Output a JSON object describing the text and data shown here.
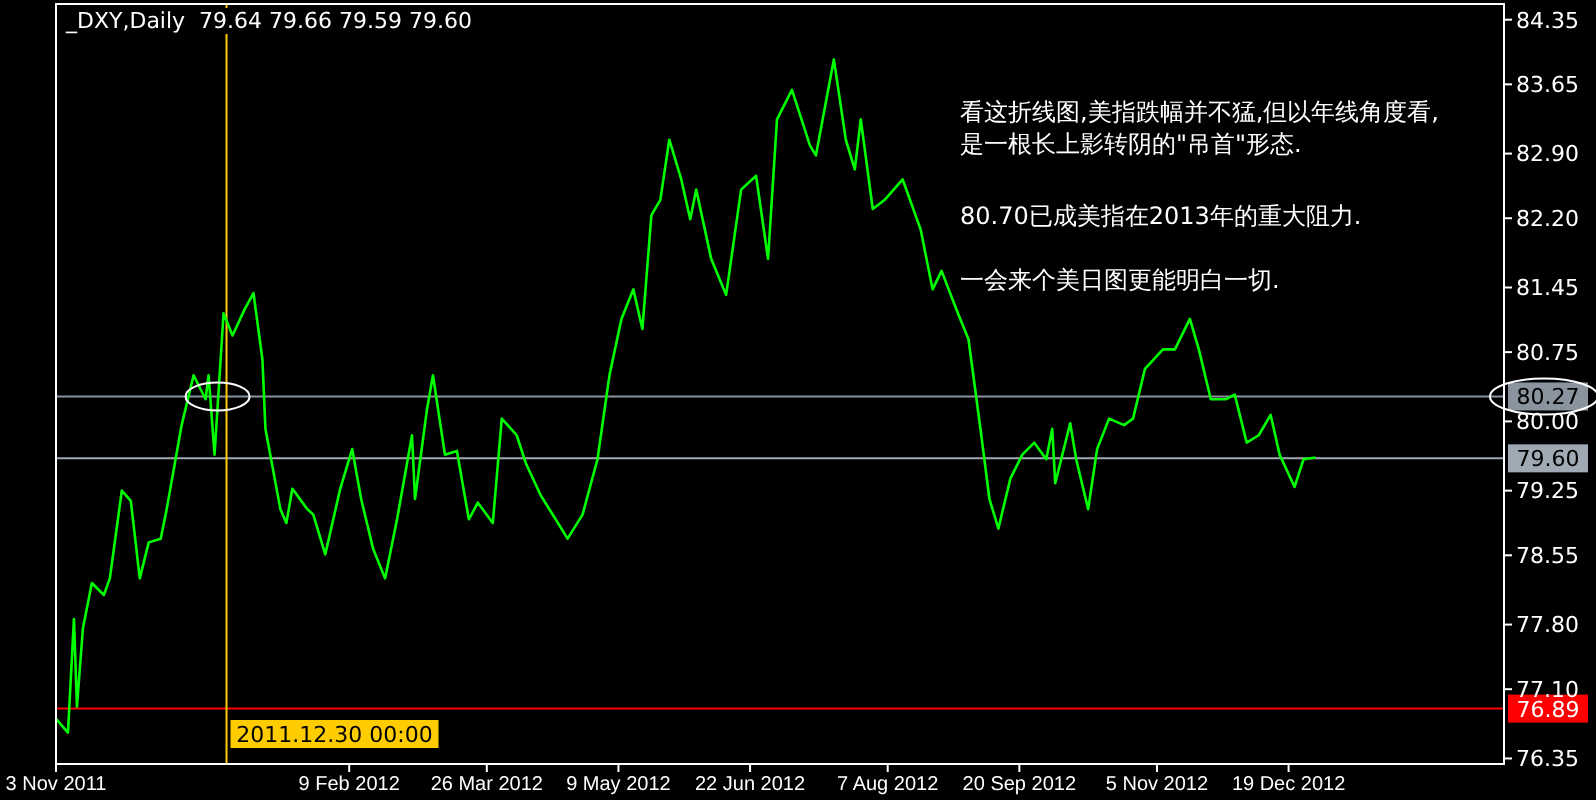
{
  "chart_data": {
    "type": "line",
    "title": "_DXY,Daily  79.64 79.66 79.59 79.60",
    "annotations": [
      "看这折线图,美指跌幅并不猛,但以年线角度看,\n是一根长上影转阴的\"吊首\"形态.",
      "80.70已成美指在2013年的重大阻力.",
      "一会来个美日图更能明白一切."
    ],
    "x": [
      "2011-11-03",
      "2011-11-07",
      "2011-11-09",
      "2011-11-10",
      "2011-11-12",
      "2011-11-15",
      "2011-11-19",
      "2011-11-21",
      "2011-11-25",
      "2011-11-28",
      "2011-12-01",
      "2011-12-04",
      "2011-12-08",
      "2011-12-10",
      "2011-12-15",
      "2011-12-19",
      "2011-12-23",
      "2011-12-24",
      "2011-12-26",
      "2011-12-29",
      "2012-01-01",
      "2012-01-05",
      "2012-01-08",
      "2012-01-11",
      "2012-01-12",
      "2012-01-17",
      "2012-01-19",
      "2012-01-21",
      "2012-01-26",
      "2012-01-28",
      "2012-02-01",
      "2012-02-06",
      "2012-02-10",
      "2012-02-13",
      "2012-02-17",
      "2012-02-21",
      "2012-02-25",
      "2012-03-01",
      "2012-03-02",
      "2012-03-06",
      "2012-03-08",
      "2012-03-12",
      "2012-03-16",
      "2012-03-20",
      "2012-03-23",
      "2012-03-28",
      "2012-03-31",
      "2012-04-05",
      "2012-04-08",
      "2012-04-13",
      "2012-04-18",
      "2012-04-22",
      "2012-04-27",
      "2012-05-02",
      "2012-05-06",
      "2012-05-10",
      "2012-05-14",
      "2012-05-17",
      "2012-05-20",
      "2012-05-23",
      "2012-05-26",
      "2012-05-30",
      "2012-06-02",
      "2012-06-04",
      "2012-06-09",
      "2012-06-14",
      "2012-06-19",
      "2012-06-24",
      "2012-06-28",
      "2012-07-01",
      "2012-07-06",
      "2012-07-12",
      "2012-07-14",
      "2012-07-20",
      "2012-07-24",
      "2012-07-27",
      "2012-07-29",
      "2012-08-02",
      "2012-08-06",
      "2012-08-12",
      "2012-08-18",
      "2012-08-22",
      "2012-08-25",
      "2012-08-30",
      "2012-09-03",
      "2012-09-07",
      "2012-09-10",
      "2012-09-13",
      "2012-09-17",
      "2012-09-21",
      "2012-09-25",
      "2012-09-29",
      "2012-10-01",
      "2012-10-02",
      "2012-10-07",
      "2012-10-09",
      "2012-10-13",
      "2012-10-16",
      "2012-10-20",
      "2012-10-25",
      "2012-10-28",
      "2012-11-01",
      "2012-11-07",
      "2012-11-11",
      "2012-11-16",
      "2012-11-19",
      "2012-11-23",
      "2012-11-28",
      "2012-12-01",
      "2012-12-05",
      "2012-12-09",
      "2012-12-13",
      "2012-12-16",
      "2012-12-21",
      "2012-12-24",
      "2012-12-28"
    ],
    "series": [
      {
        "color": "#00ff00",
        "values": [
          76.78,
          76.63,
          77.86,
          76.91,
          77.76,
          78.25,
          78.12,
          78.3,
          79.25,
          79.14,
          78.3,
          78.69,
          78.73,
          79.05,
          79.96,
          80.5,
          80.24,
          80.5,
          79.64,
          81.17,
          80.93,
          81.21,
          81.39,
          80.67,
          79.92,
          79.05,
          78.9,
          79.27,
          79.05,
          78.99,
          78.56,
          79.27,
          79.7,
          79.16,
          78.62,
          78.3,
          78.94,
          79.85,
          79.16,
          80.13,
          80.5,
          79.64,
          79.68,
          78.94,
          79.12,
          78.9,
          80.03,
          79.85,
          79.55,
          79.2,
          78.94,
          78.73,
          78.99,
          79.59,
          80.5,
          81.11,
          81.43,
          81.0,
          82.23,
          82.4,
          83.05,
          82.62,
          82.19,
          82.51,
          81.76,
          81.37,
          82.51,
          82.66,
          81.76,
          83.27,
          83.59,
          82.99,
          82.88,
          83.92,
          83.05,
          82.73,
          83.27,
          82.3,
          82.4,
          82.62,
          82.08,
          81.43,
          81.63,
          81.21,
          80.89,
          79.92,
          79.16,
          78.84,
          79.38,
          79.64,
          79.77,
          79.59,
          79.92,
          79.33,
          79.98,
          79.59,
          79.05,
          79.7,
          80.03,
          79.96,
          80.03,
          80.57,
          80.78,
          80.78,
          81.11,
          80.78,
          80.24,
          80.24,
          80.29,
          79.77,
          79.85,
          80.07,
          79.64,
          79.29,
          79.59,
          79.61
        ]
      }
    ],
    "xlim": [
      "2011-11-03",
      "2013-03-01"
    ],
    "xticks": [
      {
        "value": "2011-11-03",
        "label": "3 Nov 2011"
      },
      {
        "value": "2012-02-09",
        "label": "9 Feb 2012"
      },
      {
        "value": "2012-03-26",
        "label": "26 Mar 2012"
      },
      {
        "value": "2012-05-09",
        "label": "9 May 2012"
      },
      {
        "value": "2012-06-22",
        "label": "22 Jun 2012"
      },
      {
        "value": "2012-08-07",
        "label": "7 Aug 2012"
      },
      {
        "value": "2012-09-20",
        "label": "20 Sep 2012"
      },
      {
        "value": "2012-11-05",
        "label": "5 Nov 2012"
      },
      {
        "value": "2012-12-19",
        "label": "19 Dec 2012"
      }
    ],
    "ylim": [
      76.29,
      84.52
    ],
    "yticks": [
      84.35,
      83.65,
      {
        "value": 82.9,
        "label": "82.90"
      },
      {
        "value": 82.2,
        "label": "82.20"
      },
      81.45,
      80.75,
      {
        "value": 80,
        "label": "80.00"
      },
      79.25,
      78.55,
      {
        "value": 77.8,
        "label": "77.80"
      },
      {
        "value": 77.1,
        "label": "77.10"
      },
      76.35
    ],
    "ref_lines": [
      {
        "axis": "y",
        "value": 79.6,
        "label": "79.60",
        "color": "#a0aab4"
      },
      {
        "axis": "y",
        "value": 80.27,
        "label": "80.27",
        "color": "#8a949e"
      },
      {
        "axis": "y",
        "value": 76.89,
        "label": "76.89",
        "color": "#ff0000"
      },
      {
        "axis": "x",
        "value": "2011-12-30",
        "label": "2011.12.30 00:00",
        "color": "#ffcc00"
      }
    ],
    "marker": "none",
    "line_style": "solid"
  }
}
